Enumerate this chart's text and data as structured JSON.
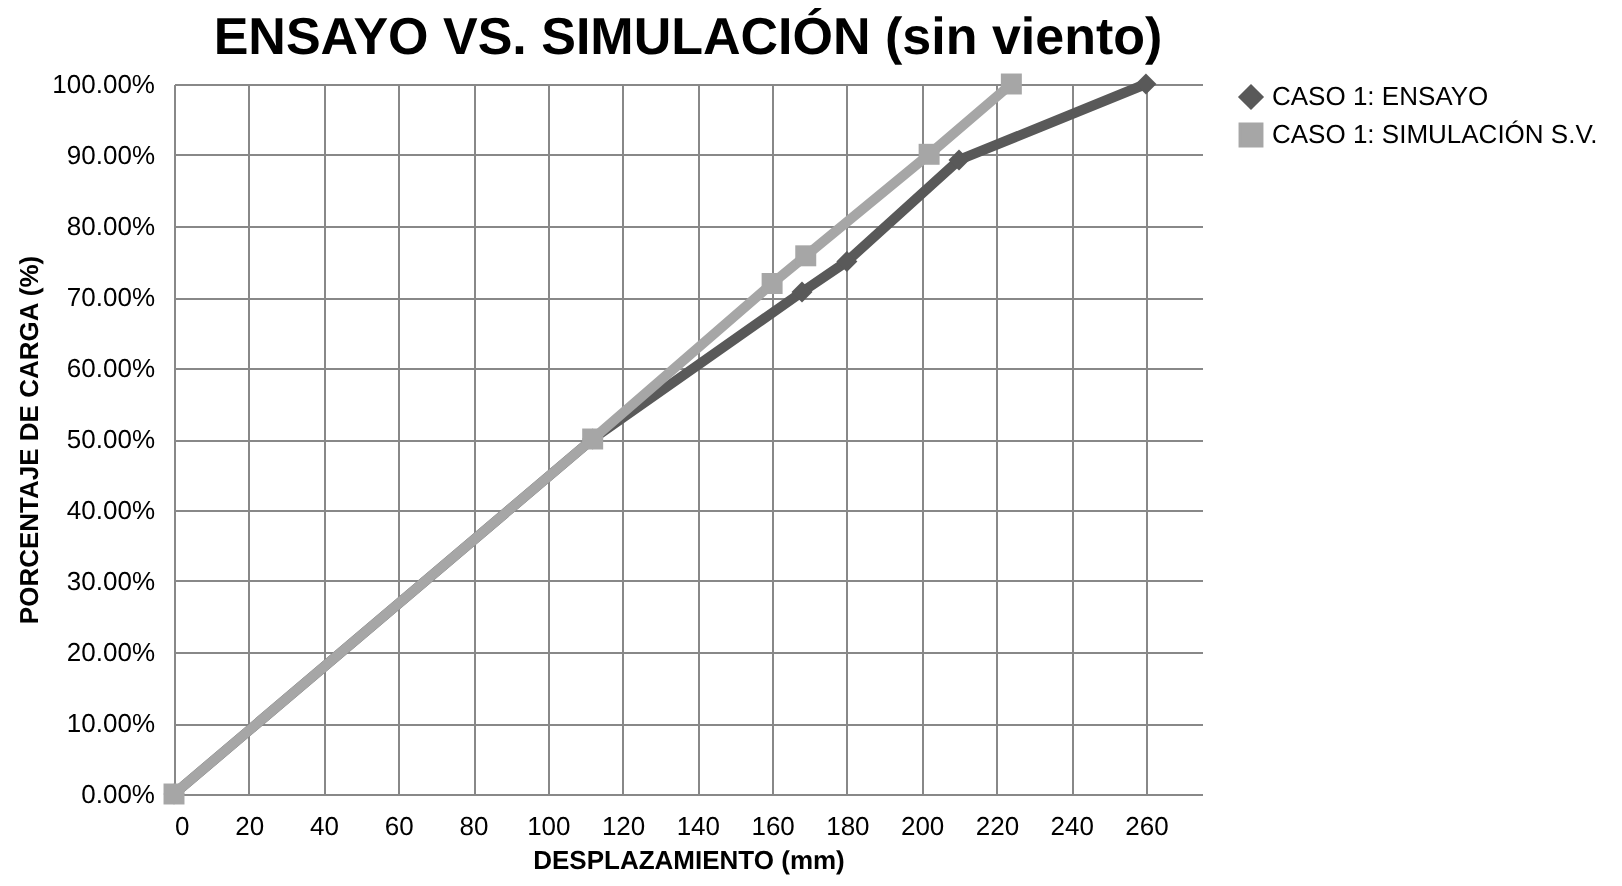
{
  "chart_data": {
    "type": "line",
    "title": "ENSAYO VS. SIMULACIÓN (sin viento)",
    "xlabel": "DESPLAZAMIENTO (mm)",
    "ylabel": "PORCENTAJE DE CARGA (%)",
    "series": [
      {
        "name": "CASO 1: ENSAYO",
        "color": "#595959",
        "marker": "diamond",
        "x": [
          0,
          112,
          168,
          180,
          210,
          260
        ],
        "values": [
          0,
          50,
          70.7,
          75,
          89.3,
          100
        ]
      },
      {
        "name": "CASO 1: SIMULACIÓN S.V.",
        "color": "#a6a6a6",
        "marker": "square",
        "x": [
          0,
          112,
          160,
          169,
          202,
          224
        ],
        "values": [
          0,
          50,
          71.9,
          75.8,
          90.1,
          100
        ]
      }
    ],
    "xlim": [
      0,
      275
    ],
    "xticks": [
      0,
      20,
      40,
      60,
      80,
      100,
      120,
      140,
      160,
      180,
      200,
      220,
      240,
      260
    ],
    "ylim": [
      0,
      100
    ],
    "yticks": [
      {
        "value": 0,
        "label": "0.00%"
      },
      {
        "value": 10,
        "label": "10.00%"
      },
      {
        "value": 20,
        "label": "20.00%"
      },
      {
        "value": 30,
        "label": "30.00%"
      },
      {
        "value": 40,
        "label": "40.00%"
      },
      {
        "value": 50,
        "label": "50.00%"
      },
      {
        "value": 60,
        "label": "60.00%"
      },
      {
        "value": 70,
        "label": "70.00%"
      },
      {
        "value": 80,
        "label": "80.00%"
      },
      {
        "value": 90,
        "label": "90.00%"
      },
      {
        "value": 100,
        "label": "100.00%"
      }
    ],
    "grid": true,
    "legend": "right",
    "line_style": "solid"
  }
}
